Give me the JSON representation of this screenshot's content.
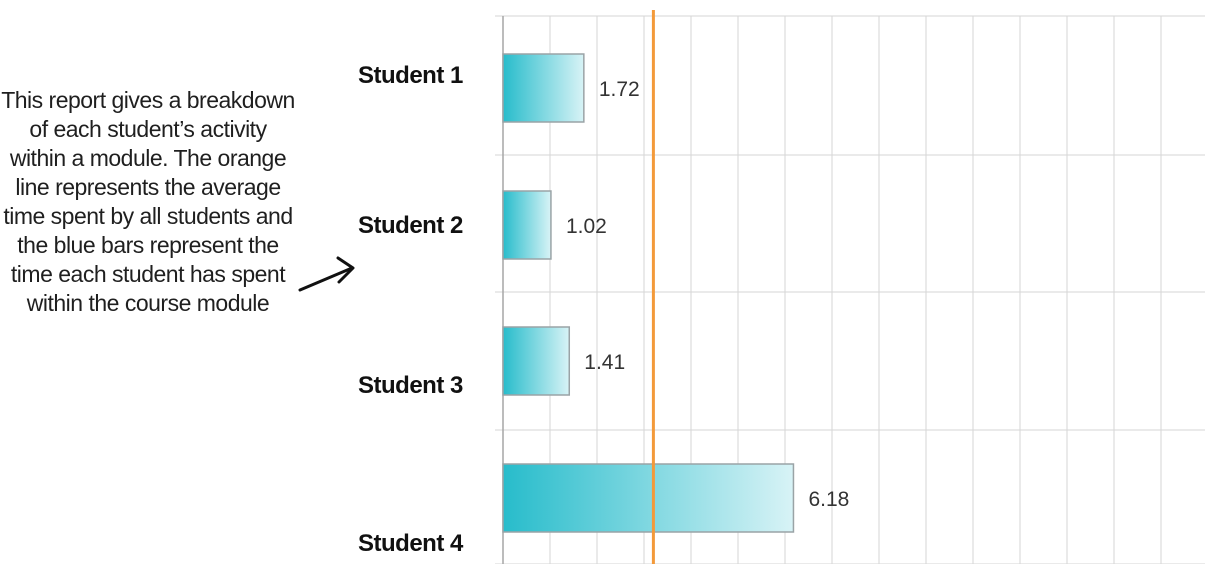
{
  "annotation": {
    "text": "This report gives a breakdown of each student’s activity within a module. The orange line represents the average time spent by all students and the blue bars represent the time each student has spent within the course module"
  },
  "chart_data": {
    "type": "bar",
    "orientation": "horizontal",
    "categories": [
      "Student 1",
      "Student 2",
      "Student 3",
      "Student 4"
    ],
    "values": [
      1.72,
      1.02,
      1.41,
      6.18
    ],
    "data_labels": [
      "1.72",
      "1.02",
      "1.41",
      "6.18"
    ],
    "average_line": 3.2,
    "xlim": [
      0,
      15
    ],
    "grid": true,
    "legend": false,
    "colors": {
      "bar_dark": "#27bccb",
      "bar_light": "#d8f3f6",
      "bar_border": "#9aa3a6",
      "average_line": "#f39a3a",
      "grid": "#d6d6d6",
      "axis": "#a6a6a6"
    }
  }
}
